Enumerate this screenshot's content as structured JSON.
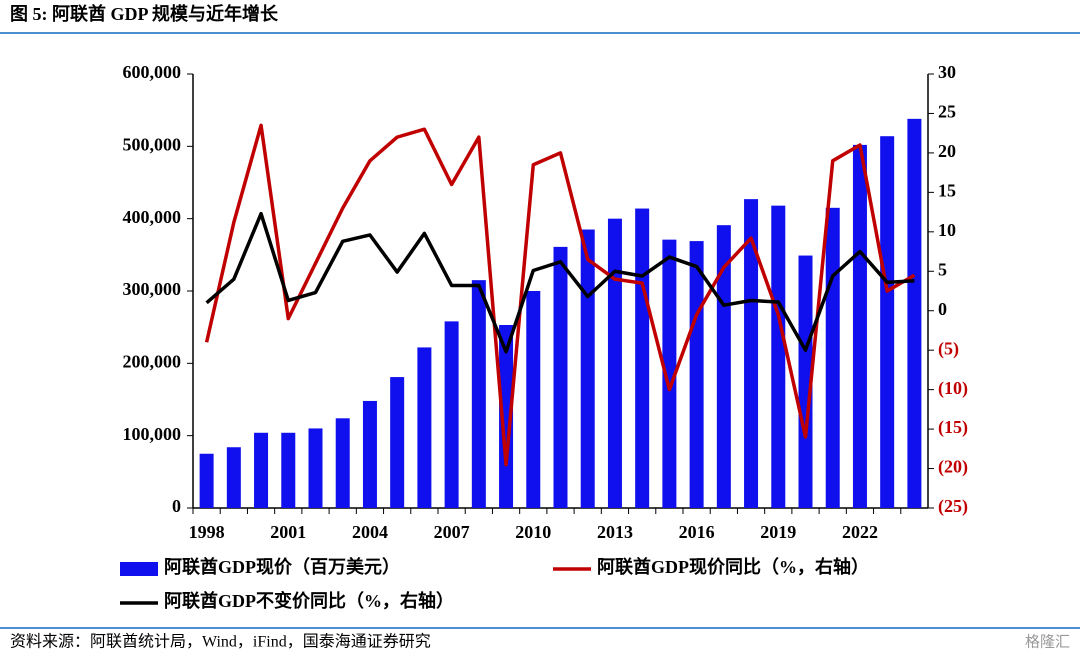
{
  "header": {
    "title": "图 5:  阿联酋 GDP 规模与近年增长"
  },
  "chart_data": {
    "type": "bar-line",
    "categories": [
      "1998",
      null,
      null,
      "2001",
      null,
      null,
      "2004",
      null,
      null,
      "2007",
      null,
      null,
      "2010",
      null,
      null,
      "2013",
      null,
      null,
      "2016",
      null,
      null,
      "2019",
      null,
      null,
      "2022",
      null,
      null
    ],
    "series": [
      {
        "name": "阿联酋GDP现价（百万美元）",
        "type": "bar",
        "color": "#1010ee",
        "axis": "y",
        "values": [
          75000,
          84000,
          104000,
          104000,
          110000,
          124000,
          148000,
          181000,
          222000,
          258000,
          315000,
          253000,
          300000,
          361000,
          385000,
          400000,
          414000,
          371000,
          369000,
          391000,
          427000,
          418000,
          349000,
          415000,
          502000,
          514000,
          538000
        ]
      },
      {
        "name": "阿联酋GDP现价同比（%，右轴）",
        "type": "line",
        "color": "#c00000",
        "axis": "y2",
        "values": [
          -4,
          11.2,
          23.5,
          -1,
          6,
          13,
          19,
          22,
          23,
          16,
          22,
          -19.5,
          18.5,
          20,
          6.5,
          4,
          3.5,
          -10,
          -0.5,
          5.5,
          9.2,
          -0.5,
          -16,
          19,
          21,
          2.5,
          4.5
        ]
      },
      {
        "name": "阿联酋GDP不变价同比（%，右轴）",
        "type": "line",
        "color": "#000000",
        "axis": "y2",
        "values": [
          1,
          4,
          12.3,
          1.3,
          2.3,
          8.8,
          9.6,
          4.9,
          9.8,
          3.2,
          3.2,
          -5.2,
          5.1,
          6.2,
          1.8,
          5,
          4.4,
          6.8,
          5.6,
          0.7,
          1.3,
          1.1,
          -5,
          4.4,
          7.5,
          3.6,
          3.8
        ]
      }
    ],
    "ylim": [
      0,
      600000
    ],
    "yticks": [
      0,
      {
        "value": 100000,
        "label": "100,000"
      },
      {
        "value": 200000,
        "label": "200,000"
      },
      {
        "value": 300000,
        "label": "300,000"
      },
      {
        "value": 400000,
        "label": "400,000"
      },
      {
        "value": 500000,
        "label": "500,000"
      },
      {
        "value": 600000,
        "label": "600,000"
      }
    ],
    "y2lim": [
      -25,
      30
    ],
    "y2ticks": [
      {
        "value": -25,
        "label": "(25)"
      },
      {
        "value": -20,
        "label": "(20)"
      },
      {
        "value": -15,
        "label": "(15)"
      },
      {
        "value": -10,
        "label": "(10)"
      },
      {
        "value": -5,
        "label": "(5)"
      },
      0,
      5,
      10,
      15,
      20,
      25,
      30
    ],
    "negative_tick_color": "#c00000",
    "legend": "bottom",
    "grid": false
  },
  "footer": {
    "source": "资料来源：阿联酋统计局，Wind，iFind，国泰海通证券研究",
    "watermark": "格隆汇"
  }
}
